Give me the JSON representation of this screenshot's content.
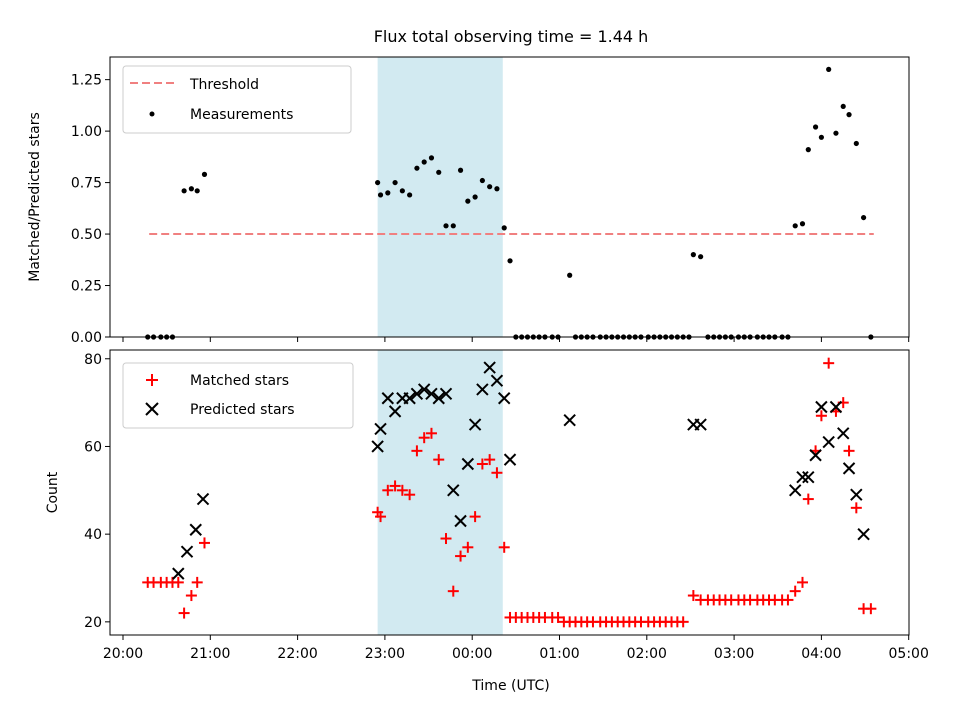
{
  "title": "Flux total observing time = 1.44 h",
  "xlabel": "Time (UTC)",
  "x_ticks": [
    "20:00",
    "21:00",
    "22:00",
    "23:00",
    "00:00",
    "01:00",
    "02:00",
    "03:00",
    "04:00",
    "05:00"
  ],
  "shaded_interval": {
    "start": "22:55",
    "end": "00:21",
    "color": "#add8e6"
  },
  "colors": {
    "threshold": "#f08080",
    "shade": "#add8e6",
    "matched": "#ff0000",
    "predicted": "#000000",
    "measurement": "#000000"
  },
  "chart_data": [
    {
      "type": "scatter",
      "ylabel": "Matched/Predicted stars",
      "ylim": [
        0,
        1.36
      ],
      "y_ticks": [
        "0.00",
        "0.25",
        "0.50",
        "0.75",
        "1.00",
        "1.25"
      ],
      "legend_placement": "upper-left",
      "threshold": {
        "name": "Threshold",
        "value": 0.5,
        "x_start": "20:18",
        "x_end": "04:36"
      },
      "series": [
        {
          "name": "Measurements",
          "points": [
            [
              "20:17",
              0
            ],
            [
              "20:21",
              0
            ],
            [
              "20:26",
              0
            ],
            [
              "20:30",
              0
            ],
            [
              "20:34",
              0
            ],
            [
              "20:42",
              0.71
            ],
            [
              "20:47",
              0.72
            ],
            [
              "20:51",
              0.71
            ],
            [
              "20:56",
              0.79
            ],
            [
              "22:55",
              0.75
            ],
            [
              "22:57",
              0.69
            ],
            [
              "23:02",
              0.7
            ],
            [
              "23:07",
              0.75
            ],
            [
              "23:12",
              0.71
            ],
            [
              "23:17",
              0.69
            ],
            [
              "23:22",
              0.82
            ],
            [
              "23:27",
              0.85
            ],
            [
              "23:32",
              0.87
            ],
            [
              "23:37",
              0.8
            ],
            [
              "23:42",
              0.54
            ],
            [
              "23:47",
              0.54
            ],
            [
              "23:52",
              0.81
            ],
            [
              "23:57",
              0.66
            ],
            [
              "00:02",
              0.68
            ],
            [
              "00:07",
              0.76
            ],
            [
              "00:12",
              0.73
            ],
            [
              "00:17",
              0.72
            ],
            [
              "00:22",
              0.53
            ],
            [
              "00:26",
              0.37
            ],
            [
              "00:30",
              0
            ],
            [
              "00:34",
              0
            ],
            [
              "00:38",
              0
            ],
            [
              "00:42",
              0
            ],
            [
              "00:46",
              0
            ],
            [
              "00:50",
              0
            ],
            [
              "00:55",
              0
            ],
            [
              "00:59",
              0
            ],
            [
              "01:07",
              0.3
            ],
            [
              "01:11",
              0
            ],
            [
              "01:15",
              0
            ],
            [
              "01:19",
              0
            ],
            [
              "01:23",
              0
            ],
            [
              "01:28",
              0
            ],
            [
              "01:32",
              0
            ],
            [
              "01:36",
              0
            ],
            [
              "01:40",
              0
            ],
            [
              "01:44",
              0
            ],
            [
              "01:48",
              0
            ],
            [
              "01:52",
              0
            ],
            [
              "01:56",
              0
            ],
            [
              "02:01",
              0
            ],
            [
              "02:05",
              0
            ],
            [
              "02:09",
              0
            ],
            [
              "02:13",
              0
            ],
            [
              "02:17",
              0
            ],
            [
              "02:21",
              0
            ],
            [
              "02:25",
              0
            ],
            [
              "02:29",
              0
            ],
            [
              "02:32",
              0.4
            ],
            [
              "02:37",
              0.39
            ],
            [
              "02:42",
              0
            ],
            [
              "02:46",
              0
            ],
            [
              "02:50",
              0
            ],
            [
              "02:54",
              0
            ],
            [
              "02:58",
              0
            ],
            [
              "03:03",
              0
            ],
            [
              "03:07",
              0
            ],
            [
              "03:11",
              0
            ],
            [
              "03:16",
              0
            ],
            [
              "03:20",
              0
            ],
            [
              "03:24",
              0
            ],
            [
              "03:28",
              0
            ],
            [
              "03:33",
              0
            ],
            [
              "03:37",
              0
            ],
            [
              "03:42",
              0.54
            ],
            [
              "03:47",
              0.55
            ],
            [
              "03:51",
              0.91
            ],
            [
              "03:56",
              1.02
            ],
            [
              "04:00",
              0.97
            ],
            [
              "04:05",
              1.3
            ],
            [
              "04:10",
              0.99
            ],
            [
              "04:15",
              1.12
            ],
            [
              "04:19",
              1.08
            ],
            [
              "04:24",
              0.94
            ],
            [
              "04:29",
              0.58
            ],
            [
              "04:34",
              0
            ]
          ]
        }
      ]
    },
    {
      "type": "scatter",
      "ylabel": "Count",
      "ylim": [
        17,
        82
      ],
      "y_ticks": [
        "20",
        "40",
        "60",
        "80"
      ],
      "legend_placement": "upper-left",
      "series": [
        {
          "name": "Matched stars",
          "marker": "+",
          "points": [
            [
              "20:17",
              29
            ],
            [
              "20:21",
              29
            ],
            [
              "20:26",
              29
            ],
            [
              "20:30",
              29
            ],
            [
              "20:34",
              29
            ],
            [
              "20:38",
              29
            ],
            [
              "20:42",
              22
            ],
            [
              "20:47",
              26
            ],
            [
              "20:51",
              29
            ],
            [
              "20:56",
              38
            ],
            [
              "22:55",
              45
            ],
            [
              "22:57",
              44
            ],
            [
              "23:02",
              50
            ],
            [
              "23:07",
              51
            ],
            [
              "23:12",
              50
            ],
            [
              "23:17",
              49
            ],
            [
              "23:22",
              59
            ],
            [
              "23:27",
              62
            ],
            [
              "23:32",
              63
            ],
            [
              "23:37",
              57
            ],
            [
              "23:42",
              39
            ],
            [
              "23:47",
              27
            ],
            [
              "23:52",
              35
            ],
            [
              "23:57",
              37
            ],
            [
              "00:02",
              44
            ],
            [
              "00:07",
              56
            ],
            [
              "00:12",
              57
            ],
            [
              "00:17",
              54
            ],
            [
              "00:22",
              37
            ],
            [
              "00:26",
              21
            ],
            [
              "00:30",
              21
            ],
            [
              "00:34",
              21
            ],
            [
              "00:38",
              21
            ],
            [
              "00:42",
              21
            ],
            [
              "00:46",
              21
            ],
            [
              "00:50",
              21
            ],
            [
              "00:55",
              21
            ],
            [
              "00:59",
              21
            ],
            [
              "01:03",
              20
            ],
            [
              "01:07",
              20
            ],
            [
              "01:11",
              20
            ],
            [
              "01:15",
              20
            ],
            [
              "01:19",
              20
            ],
            [
              "01:23",
              20
            ],
            [
              "01:28",
              20
            ],
            [
              "01:32",
              20
            ],
            [
              "01:36",
              20
            ],
            [
              "01:40",
              20
            ],
            [
              "01:44",
              20
            ],
            [
              "01:48",
              20
            ],
            [
              "01:52",
              20
            ],
            [
              "01:56",
              20
            ],
            [
              "02:01",
              20
            ],
            [
              "02:05",
              20
            ],
            [
              "02:09",
              20
            ],
            [
              "02:13",
              20
            ],
            [
              "02:17",
              20
            ],
            [
              "02:21",
              20
            ],
            [
              "02:25",
              20
            ],
            [
              "02:32",
              26
            ],
            [
              "02:37",
              25
            ],
            [
              "02:42",
              25
            ],
            [
              "02:46",
              25
            ],
            [
              "02:50",
              25
            ],
            [
              "02:54",
              25
            ],
            [
              "02:58",
              25
            ],
            [
              "03:03",
              25
            ],
            [
              "03:07",
              25
            ],
            [
              "03:11",
              25
            ],
            [
              "03:16",
              25
            ],
            [
              "03:20",
              25
            ],
            [
              "03:24",
              25
            ],
            [
              "03:28",
              25
            ],
            [
              "03:33",
              25
            ],
            [
              "03:37",
              25
            ],
            [
              "03:42",
              27
            ],
            [
              "03:47",
              29
            ],
            [
              "03:51",
              48
            ],
            [
              "03:56",
              59
            ],
            [
              "04:00",
              67
            ],
            [
              "04:05",
              79
            ],
            [
              "04:10",
              68
            ],
            [
              "04:15",
              70
            ],
            [
              "04:19",
              59
            ],
            [
              "04:24",
              46
            ],
            [
              "04:29",
              23
            ],
            [
              "04:34",
              23
            ]
          ]
        },
        {
          "name": "Predicted stars",
          "marker": "x",
          "points": [
            [
              "20:38",
              31
            ],
            [
              "20:44",
              36
            ],
            [
              "20:50",
              41
            ],
            [
              "20:55",
              48
            ],
            [
              "22:55",
              60
            ],
            [
              "22:57",
              64
            ],
            [
              "23:02",
              71
            ],
            [
              "23:07",
              68
            ],
            [
              "23:12",
              71
            ],
            [
              "23:17",
              71
            ],
            [
              "23:22",
              72
            ],
            [
              "23:27",
              73
            ],
            [
              "23:32",
              72
            ],
            [
              "23:37",
              71
            ],
            [
              "23:42",
              72
            ],
            [
              "23:47",
              50
            ],
            [
              "23:52",
              43
            ],
            [
              "23:57",
              56
            ],
            [
              "00:02",
              65
            ],
            [
              "00:07",
              73
            ],
            [
              "00:12",
              78
            ],
            [
              "00:17",
              75
            ],
            [
              "00:22",
              71
            ],
            [
              "00:26",
              57
            ],
            [
              "01:07",
              66
            ],
            [
              "02:32",
              65
            ],
            [
              "02:37",
              65
            ],
            [
              "03:42",
              50
            ],
            [
              "03:47",
              53
            ],
            [
              "03:51",
              53
            ],
            [
              "03:56",
              58
            ],
            [
              "04:00",
              69
            ],
            [
              "04:05",
              61
            ],
            [
              "04:10",
              69
            ],
            [
              "04:15",
              63
            ],
            [
              "04:19",
              55
            ],
            [
              "04:24",
              49
            ],
            [
              "04:29",
              40
            ]
          ]
        }
      ]
    }
  ]
}
